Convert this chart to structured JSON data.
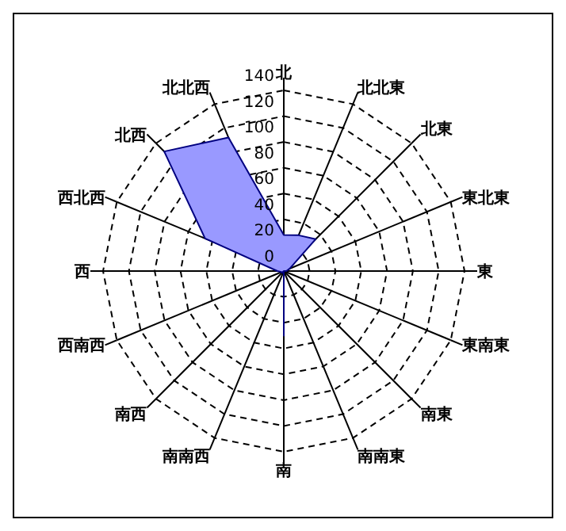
{
  "chart_data": {
    "type": "radar",
    "categories": [
      "北",
      "北北東",
      "北東",
      "東北東",
      "東",
      "東南東",
      "南東",
      "南南東",
      "南",
      "南南西",
      "南西",
      "西南西",
      "西",
      "西北西",
      "北西",
      "北北西"
    ],
    "series": [
      {
        "color": "#9999ff",
        "values": [
          28,
          30,
          35,
          5,
          2,
          0,
          0,
          0,
          50,
          0,
          2,
          2,
          5,
          66,
          131,
          112
        ]
      }
    ],
    "ylim": [
      0,
      140
    ],
    "yticks": [
      0,
      20,
      40,
      60,
      80,
      100,
      120,
      140
    ],
    "grid": true,
    "line_style": "dashed"
  }
}
